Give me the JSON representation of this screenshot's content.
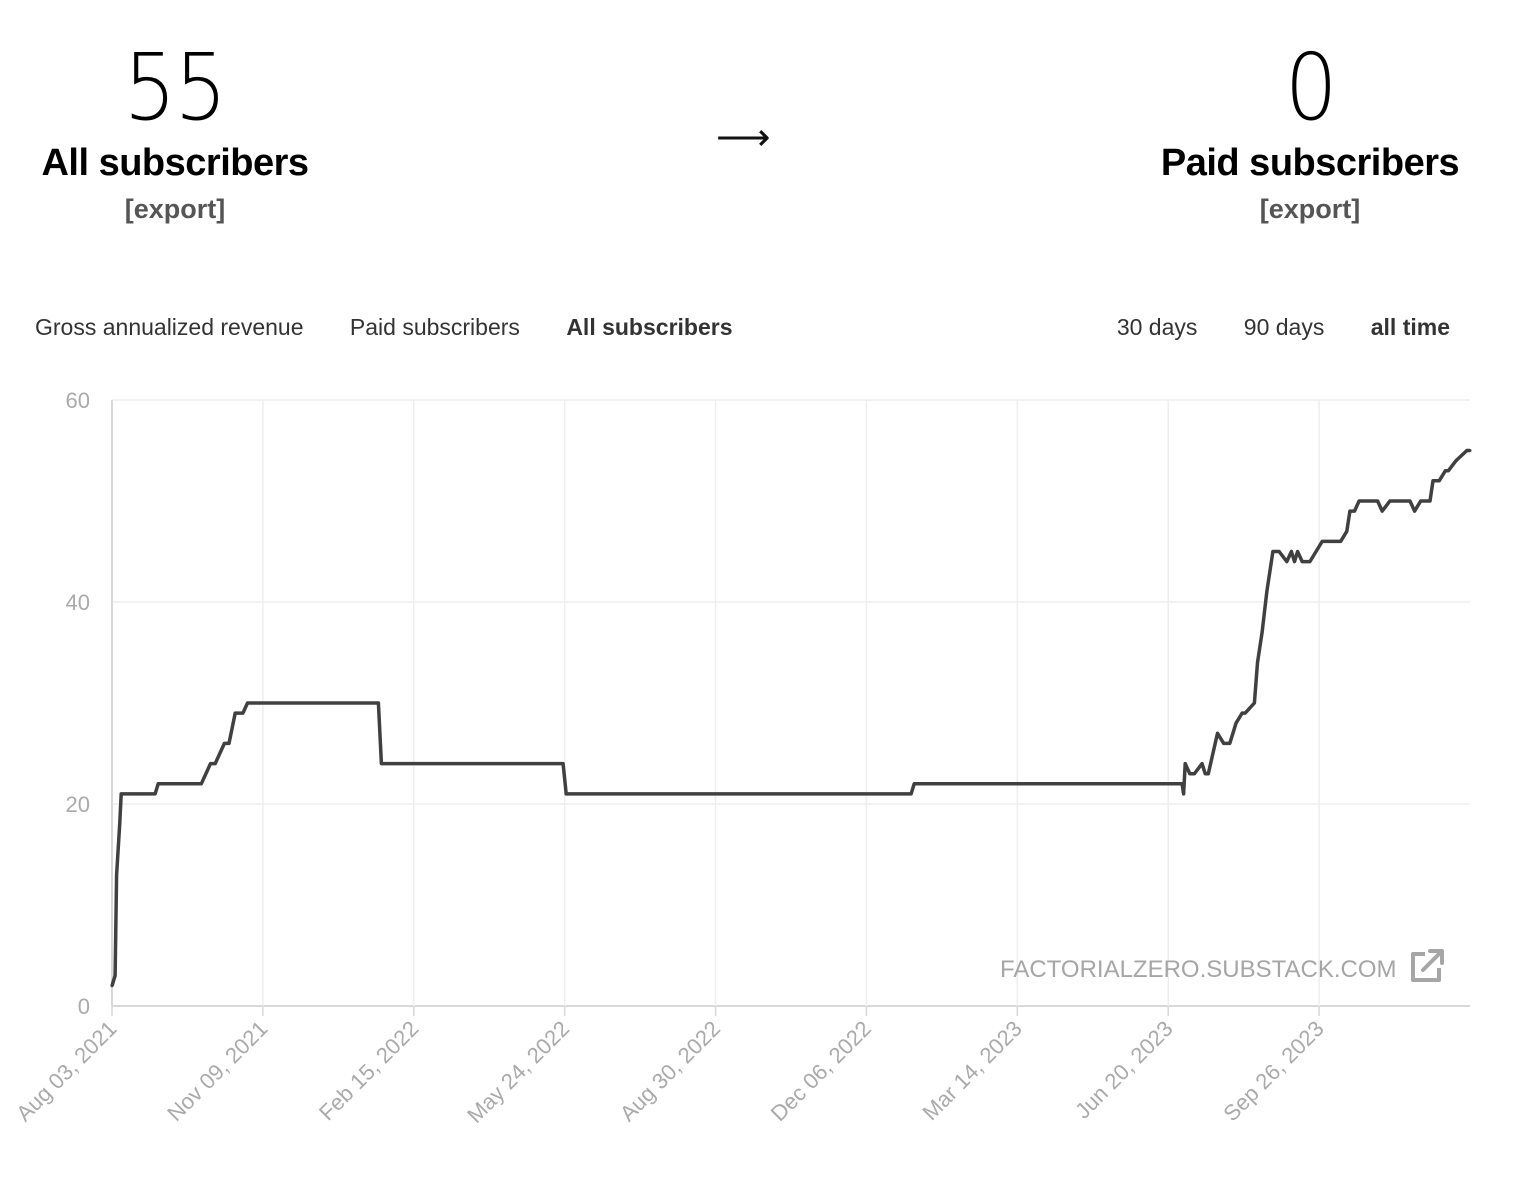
{
  "stats": {
    "all": {
      "value": "55",
      "label": "All subscribers",
      "export": "[export]"
    },
    "arrow": "⟶",
    "paid": {
      "value": "0",
      "label": "Paid subscribers",
      "export": "[export]"
    }
  },
  "metric_tabs": [
    {
      "label": "Gross annualized revenue",
      "active": false
    },
    {
      "label": "Paid subscribers",
      "active": false
    },
    {
      "label": "All subscribers",
      "active": true
    }
  ],
  "range_tabs": [
    {
      "label": "30 days",
      "active": false
    },
    {
      "label": "90 days",
      "active": false
    },
    {
      "label": "all time",
      "active": true
    }
  ],
  "watermark": {
    "text": "FACTORIALZERO.SUBSTACK.COM",
    "icon": "external-link-icon"
  },
  "colors": {
    "line": "#404040",
    "grid": "#eeeeee",
    "axis_text": "#aaaaaa"
  },
  "chart_data": {
    "type": "line",
    "title": "",
    "xlabel": "",
    "ylabel": "",
    "ylim": [
      0,
      60
    ],
    "yticks": [
      0,
      20,
      40,
      60
    ],
    "xlim": [
      "2021-08-03",
      "2024-01-02"
    ],
    "x_tick_labels": [
      "Aug 03, 2021",
      "Nov 09, 2021",
      "Feb 15, 2022",
      "May 24, 2022",
      "Aug 30, 2022",
      "Dec 06, 2022",
      "Mar 14, 2023",
      "Jun 20, 2023",
      "Sep 26, 2023"
    ],
    "x_tick_dates": [
      "2021-08-03",
      "2021-11-09",
      "2022-02-15",
      "2022-05-24",
      "2022-08-30",
      "2022-12-06",
      "2023-03-14",
      "2023-06-20",
      "2023-09-26"
    ],
    "grid": true,
    "series": [
      {
        "x": [
          "2021-08-03",
          "2021-08-05",
          "2021-08-06",
          "2021-08-08",
          "2021-08-09",
          "2021-08-10",
          "2021-08-20",
          "2021-08-31",
          "2021-09-02",
          "2021-09-27",
          "2021-09-30",
          "2021-10-06",
          "2021-10-09",
          "2021-10-15",
          "2021-10-18",
          "2021-10-22",
          "2021-10-27",
          "2021-10-30",
          "2022-01-23",
          "2022-01-25",
          "2022-05-23",
          "2022-05-25",
          "2023-01-04",
          "2023-01-06",
          "2023-06-29",
          "2023-06-30",
          "2023-07-01",
          "2023-07-04",
          "2023-07-07",
          "2023-07-12",
          "2023-07-14",
          "2023-07-16",
          "2023-07-19",
          "2023-07-22",
          "2023-07-26",
          "2023-07-30",
          "2023-08-03",
          "2023-08-07",
          "2023-08-09",
          "2023-08-15",
          "2023-08-17",
          "2023-08-20",
          "2023-08-23",
          "2023-08-27",
          "2023-08-29",
          "2023-08-31",
          "2023-09-05",
          "2023-09-08",
          "2023-09-10",
          "2023-09-12",
          "2023-09-15",
          "2023-09-17",
          "2023-09-20",
          "2023-09-28",
          "2023-10-03",
          "2023-10-10",
          "2023-10-14",
          "2023-10-16",
          "2023-10-19",
          "2023-10-22",
          "2023-10-31",
          "2023-11-03",
          "2023-11-06",
          "2023-11-11",
          "2023-11-24",
          "2023-11-27",
          "2023-12-01",
          "2023-12-07",
          "2023-12-09",
          "2023-12-13",
          "2023-12-17",
          "2023-12-19",
          "2023-12-24",
          "2023-12-31",
          "2024-01-02"
        ],
        "values": [
          2,
          3,
          13,
          18,
          21,
          21,
          21,
          21,
          22,
          22,
          22,
          24,
          24,
          26,
          26,
          29,
          29,
          30,
          30,
          24,
          24,
          21,
          21,
          22,
          22,
          21,
          24,
          23,
          23,
          24,
          23,
          23,
          25,
          27,
          26,
          26,
          28,
          29,
          29,
          30,
          34,
          37,
          41,
          45,
          45,
          45,
          44,
          45,
          44,
          45,
          44,
          44,
          44,
          46,
          46,
          46,
          47,
          49,
          49,
          50,
          50,
          50,
          49,
          50,
          50,
          49,
          50,
          50,
          52,
          52,
          53,
          53,
          54,
          55,
          55
        ]
      }
    ]
  }
}
